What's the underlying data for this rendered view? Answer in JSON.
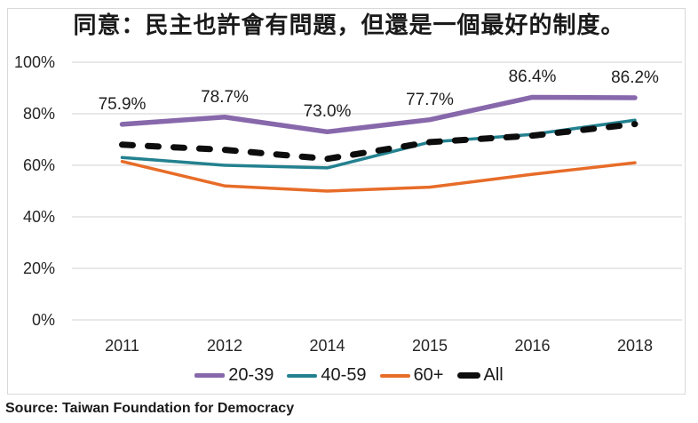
{
  "chart_data": {
    "type": "line",
    "title": "同意：民主也許會有問題，但還是一個最好的制度。",
    "categories": [
      "2011",
      "2012",
      "2014",
      "2015",
      "2016",
      "2018"
    ],
    "y_axis": {
      "tick_labels": [
        "0%",
        "20%",
        "40%",
        "60%",
        "80%",
        "100%"
      ],
      "tick_values": [
        0,
        20,
        40,
        60,
        80,
        100
      ],
      "min": 0,
      "max": 100,
      "grid": true,
      "grid_color": "#d9d9d9"
    },
    "legend_position": "bottom",
    "series": [
      {
        "name": "20-39",
        "color": "#8768AB",
        "dashed": false,
        "values": [
          75.9,
          78.7,
          73.0,
          77.7,
          86.4,
          86.2
        ],
        "point_labels": [
          "75.9%",
          "78.7%",
          "73.0%",
          "77.7%",
          "86.4%",
          "86.2%"
        ]
      },
      {
        "name": "40-59",
        "color": "#23818F",
        "dashed": false,
        "values": [
          63,
          60,
          59,
          69,
          72,
          77.5
        ],
        "point_labels": []
      },
      {
        "name": "60+",
        "color": "#E76C28",
        "dashed": false,
        "values": [
          61.5,
          52,
          50,
          51.5,
          56.5,
          61
        ],
        "point_labels": []
      },
      {
        "name": "All",
        "color": "#0d0d0d",
        "dashed": true,
        "values": [
          68,
          66,
          62.5,
          69,
          71.5,
          76
        ],
        "point_labels": []
      }
    ]
  },
  "source": "Source: Taiwan Foundation for Democracy"
}
